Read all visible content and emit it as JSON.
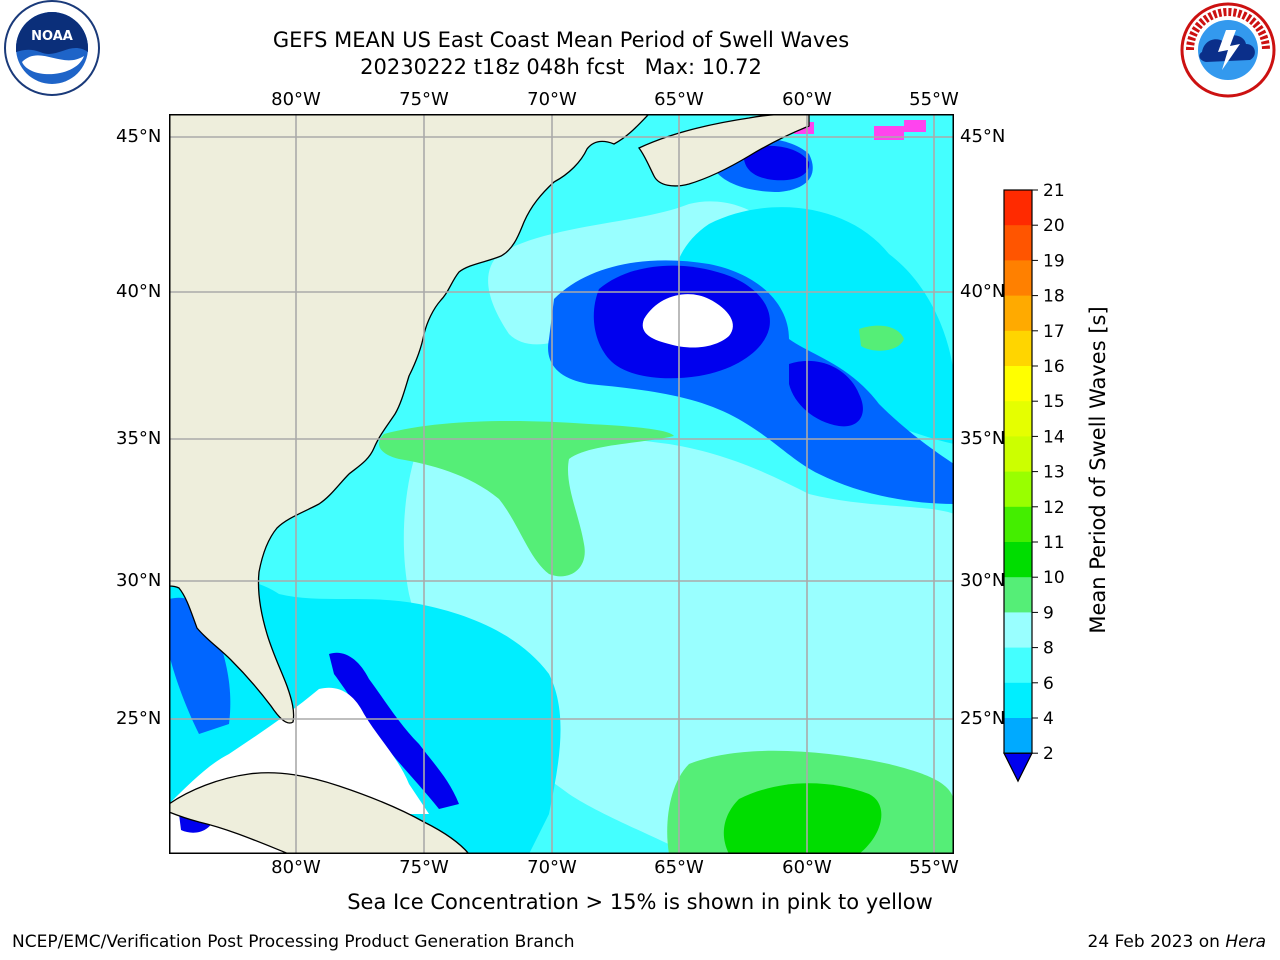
{
  "header": {
    "title_line1": "GEFS MEAN US East Coast Mean Period of Swell Waves",
    "title_line2": "20230222 t18z 048h fcst   Max: 10.72"
  },
  "logos": {
    "left": {
      "name": "NOAA",
      "ring_text": "NATIONAL OCEANIC AND ATMOSPHERIC ADMINISTRATION · U.S. DEPARTMENT OF COMMERCE"
    },
    "right": {
      "name": "NATIONAL WEATHER SERVICE"
    }
  },
  "axes": {
    "lon_labels": [
      "80°W",
      "75°W",
      "70°W",
      "65°W",
      "60°W",
      "55°W"
    ],
    "lat_labels_left": [
      "45°N",
      "40°N",
      "35°N",
      "30°N",
      "25°N"
    ],
    "lat_labels_right": [
      "45°N",
      "40°N",
      "35°N",
      "30°N",
      "25°N"
    ]
  },
  "colorbar": {
    "label": "Mean Period of Swell Waves [s]",
    "ticks": [
      "21",
      "20",
      "19",
      "18",
      "17",
      "16",
      "15",
      "14",
      "13",
      "12",
      "11",
      "10",
      "9",
      "8",
      "6",
      "4",
      "2"
    ],
    "colors": [
      "#ff0000",
      "#ff2a00",
      "#ff5500",
      "#ff8000",
      "#ffaa00",
      "#ffd500",
      "#ffff00",
      "#e5ff00",
      "#ccff00",
      "#99ff00",
      "#44ee00",
      "#00dd00",
      "#55ee77",
      "#99ffff",
      "#44ffff",
      "#00eeff",
      "#00aaff",
      "#0066ff"
    ],
    "extend_color": "#0000ee"
  },
  "colors": {
    "land": "#eeeedc",
    "grid": "#aaaaaa",
    "deep_blue": "#0000ee",
    "mid_blue": "#0066ff",
    "cyan": "#00eeff",
    "light_cyan": "#44ffff",
    "pale_cyan": "#99ffff",
    "green": "#55ee77",
    "bright_green": "#00dd00",
    "ice_pink": "#ff44ee"
  },
  "footer": {
    "note": "Sea Ice Concentration > 15% is shown in pink to yellow",
    "credit": "NCEP/EMC/Verification Post Processing Product Generation Branch",
    "date": "24 Feb 2023 on ",
    "machine": "Hera"
  }
}
